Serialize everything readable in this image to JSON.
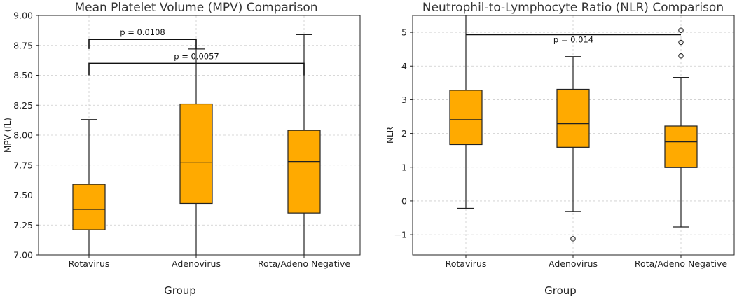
{
  "chart_data": [
    {
      "type": "box",
      "title": "Mean Platelet Volume (MPV) Comparison",
      "xlabel": "Group",
      "ylabel": "MPV (fL)",
      "ylim": [
        7.0,
        9.0
      ],
      "yticks": [
        "7.00",
        "7.25",
        "7.50",
        "7.75",
        "8.00",
        "8.25",
        "8.50",
        "8.75",
        "9.00"
      ],
      "ytick_values": [
        7.0,
        7.25,
        7.5,
        7.75,
        8.0,
        8.25,
        8.5,
        8.75,
        9.0
      ],
      "categories": [
        "Rotavirus",
        "Adenovirus",
        "Rota/Adeno Negative"
      ],
      "boxes": [
        {
          "whislo": 7.0,
          "q1": 7.21,
          "med": 7.38,
          "q3": 7.59,
          "whishi": 8.13,
          "fliers": []
        },
        {
          "whislo": 7.0,
          "q1": 7.43,
          "med": 7.77,
          "q3": 8.26,
          "whishi": 8.72,
          "fliers": []
        },
        {
          "whislo": 7.0,
          "q1": 7.35,
          "med": 7.78,
          "q3": 8.04,
          "whishi": 8.84,
          "fliers": []
        }
      ],
      "annotations": [
        {
          "from": 0,
          "to": 1,
          "y": 8.8,
          "drop": 8.72,
          "text": "p = 0.0108"
        },
        {
          "from": 0,
          "to": 2,
          "y": 8.6,
          "drop": 8.5,
          "text": "p = 0.0057"
        }
      ],
      "box_color": "#ffaa00",
      "grid": true
    },
    {
      "type": "box",
      "title": "Neutrophil-to-Lymphocyte Ratio (NLR) Comparison",
      "xlabel": "Group",
      "ylabel": "NLR",
      "ylim": [
        -1.6,
        5.5
      ],
      "yticks": [
        "−1",
        "0",
        "1",
        "2",
        "3",
        "4",
        "5"
      ],
      "ytick_values": [
        -1,
        0,
        1,
        2,
        3,
        4,
        5
      ],
      "categories": [
        "Rotavirus",
        "Adenovirus",
        "Rota/Adeno Negative"
      ],
      "boxes": [
        {
          "whislo": -0.22,
          "q1": 1.67,
          "med": 2.41,
          "q3": 3.28,
          "whishi": 5.5,
          "fliers": []
        },
        {
          "whislo": -0.31,
          "q1": 1.59,
          "med": 2.29,
          "q3": 3.31,
          "whishi": 4.28,
          "fliers": [
            -1.12
          ]
        },
        {
          "whislo": -0.77,
          "q1": 0.99,
          "med": 1.75,
          "q3": 2.22,
          "whishi": 3.66,
          "fliers": [
            4.3,
            4.7,
            5.06
          ]
        }
      ],
      "annotations": [
        {
          "from": 0,
          "to": 2,
          "y": 4.93,
          "drop": null,
          "text": "p = 0.014"
        }
      ],
      "box_color": "#ffaa00",
      "grid": true
    }
  ]
}
